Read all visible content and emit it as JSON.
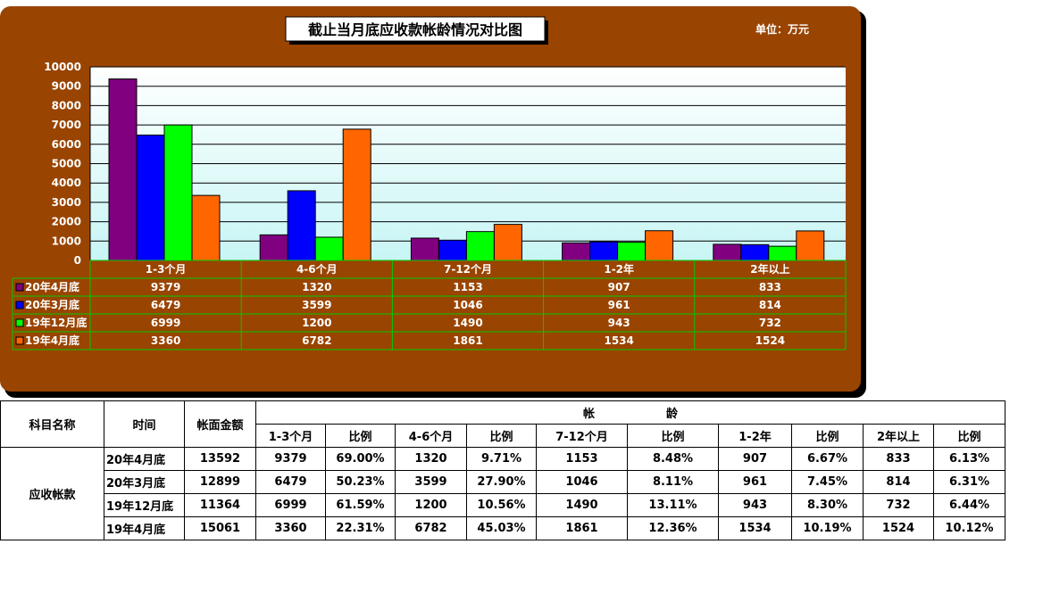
{
  "chart_data": {
    "type": "bar",
    "title": "截止当月底应收款帐龄情况对比图",
    "unit_label": "单位：万元",
    "categories": [
      "1-3个月",
      "4-6个月",
      "7-12个月",
      "1-2年",
      "2年以上"
    ],
    "series": [
      {
        "name": "20年4月底",
        "color": "#800080",
        "values": [
          9379,
          1320,
          1153,
          907,
          833
        ]
      },
      {
        "name": "20年3月底",
        "color": "#0000ff",
        "values": [
          6479,
          3599,
          1046,
          961,
          814
        ]
      },
      {
        "name": "19年12月底",
        "color": "#00ff00",
        "values": [
          6999,
          1200,
          1490,
          943,
          732
        ]
      },
      {
        "name": "19年4月底",
        "color": "#ff6600",
        "values": [
          3360,
          6782,
          1861,
          1534,
          1524
        ]
      }
    ],
    "ylim": [
      0,
      10000
    ],
    "yticks": [
      0,
      1000,
      2000,
      3000,
      4000,
      5000,
      6000,
      7000,
      8000,
      9000,
      10000
    ],
    "grid": true,
    "legend": "data-table"
  },
  "colors": {
    "panel_bg": "#994400",
    "plot_top": "#ffffff",
    "plot_bottom": "#c8f5f5",
    "table_border": "#00cc00"
  },
  "table": {
    "headers": {
      "subject": "科目名称",
      "time": "时间",
      "book_amount": "帐面金额",
      "aging_char1": "帐",
      "aging_char2": "龄",
      "cols": [
        "1-3个月",
        "比例",
        "4-6个月",
        "比例",
        "7-12个月",
        "比例",
        "1-2年",
        "比例",
        "2年以上",
        "比例"
      ]
    },
    "subject": "应收帐款",
    "rows": [
      {
        "time": "20年4月底",
        "amount": "13592",
        "values": [
          "9379",
          "69.00%",
          "1320",
          "9.71%",
          "1153",
          "8.48%",
          "907",
          "6.67%",
          "833",
          "6.13%"
        ]
      },
      {
        "time": "20年3月底",
        "amount": "12899",
        "values": [
          "6479",
          "50.23%",
          "3599",
          "27.90%",
          "1046",
          "8.11%",
          "961",
          "7.45%",
          "814",
          "6.31%"
        ]
      },
      {
        "time": "19年12月底",
        "amount": "11364",
        "values": [
          "6999",
          "61.59%",
          "1200",
          "10.56%",
          "1490",
          "13.11%",
          "943",
          "8.30%",
          "732",
          "6.44%"
        ]
      },
      {
        "time": "19年4月底",
        "amount": "15061",
        "values": [
          "3360",
          "22.31%",
          "6782",
          "45.03%",
          "1861",
          "12.36%",
          "1534",
          "10.19%",
          "1524",
          "10.12%"
        ]
      }
    ]
  }
}
